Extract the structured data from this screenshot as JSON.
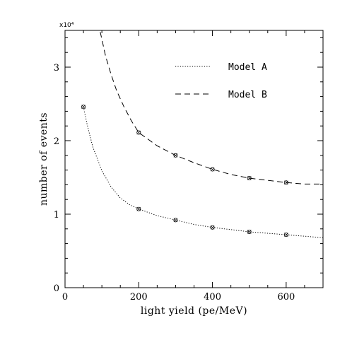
{
  "chart_data": {
    "type": "line",
    "xlabel": "light yield (pe/MeV)",
    "ylabel": "number of events",
    "y_multiplier": "x10⁴",
    "xlim": [
      0,
      700
    ],
    "ylim": [
      0,
      3.5
    ],
    "x_ticks": [
      0,
      200,
      400,
      600
    ],
    "y_ticks": [
      0,
      1,
      2,
      3
    ],
    "grid": false,
    "legend_position": "top-right",
    "series": [
      {
        "name": "Model A",
        "style": "dotted",
        "color": "#000000",
        "markers_x": [
          50,
          200,
          300,
          400,
          500,
          600
        ],
        "markers_y": [
          2.46,
          1.07,
          0.92,
          0.82,
          0.76,
          0.72
        ],
        "curve_x": [
          50,
          60,
          75,
          100,
          125,
          150,
          175,
          200,
          250,
          300,
          350,
          400,
          450,
          500,
          550,
          600,
          650,
          700
        ],
        "curve_y": [
          2.46,
          2.22,
          1.92,
          1.59,
          1.37,
          1.22,
          1.13,
          1.07,
          0.98,
          0.92,
          0.86,
          0.82,
          0.79,
          0.76,
          0.74,
          0.72,
          0.7,
          0.68
        ]
      },
      {
        "name": "Model B",
        "style": "dashed",
        "color": "#000000",
        "markers_x": [
          200,
          300,
          400,
          500,
          600
        ],
        "markers_y": [
          2.11,
          1.8,
          1.61,
          1.49,
          1.43
        ],
        "curve_x": [
          90,
          100,
          110,
          125,
          140,
          160,
          180,
          200,
          250,
          300,
          350,
          400,
          450,
          500,
          550,
          600,
          650,
          700
        ],
        "curve_y": [
          3.6,
          3.38,
          3.15,
          2.9,
          2.68,
          2.46,
          2.27,
          2.11,
          1.93,
          1.8,
          1.7,
          1.61,
          1.54,
          1.49,
          1.46,
          1.43,
          1.41,
          1.41
        ]
      }
    ]
  }
}
